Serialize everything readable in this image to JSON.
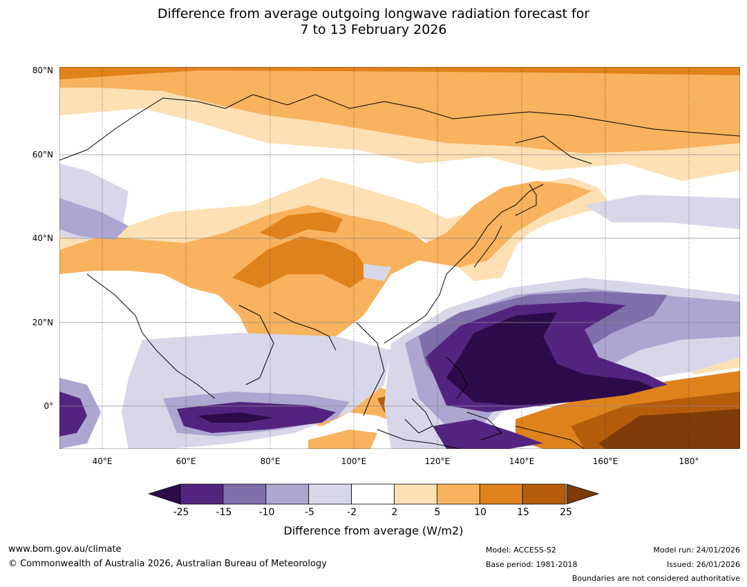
{
  "title": {
    "line1": "Difference from average outgoing longwave radiation forecast for",
    "line2": "7 to 13 February 2026"
  },
  "map": {
    "lat_labels": [
      "80°N",
      "60°N",
      "40°N",
      "20°N",
      "0°"
    ],
    "lon_labels": [
      "40°E",
      "60°E",
      "80°E",
      "100°E",
      "120°E",
      "140°E",
      "160°E",
      "180°"
    ]
  },
  "colorbar": {
    "ticks": [
      "-25",
      "-15",
      "-10",
      "-5",
      "-2",
      "2",
      "5",
      "10",
      "15",
      "25"
    ],
    "colors": [
      "#2d0a4a",
      "#53247f",
      "#7f6fab",
      "#ada6d1",
      "#d8d7ea",
      "#ffffff",
      "#fde0b4",
      "#f9b25d",
      "#e0821c",
      "#b65d0b",
      "#7f3b08"
    ],
    "label": "Difference from average (W/m2)"
  },
  "footer": {
    "website": "www.bom.gov.au/climate",
    "copyright": "© Commonwealth of Australia 2026, Australian Bureau of Meteorology",
    "model": "Model: ACCESS-S2",
    "base_period": "Base period: 1981-2018",
    "model_run": "Model run: 24/01/2026",
    "issued": "Issued: 26/01/2026",
    "disclaimer": "Boundaries are not considered authoritative"
  }
}
